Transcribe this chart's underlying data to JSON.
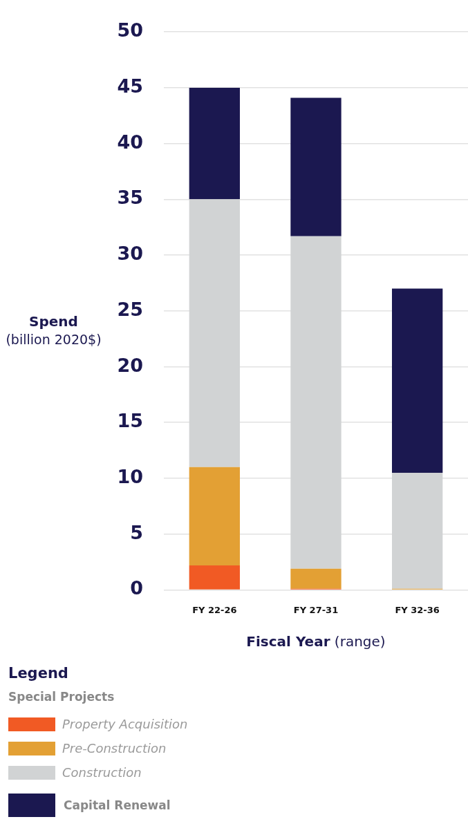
{
  "chart_data": {
    "type": "bar",
    "stacked": true,
    "categories": [
      "FY 22-26",
      "FY 27-31",
      "FY 32-36"
    ],
    "series": [
      {
        "name": "Property Acquisition",
        "color": "#f15a24",
        "values": [
          2.2,
          0.1,
          0
        ]
      },
      {
        "name": "Pre-Construction",
        "color": "#e3a034",
        "values": [
          8.8,
          1.8,
          0.1
        ]
      },
      {
        "name": "Construction",
        "color": "#d1d3d4",
        "values": [
          24,
          29.8,
          10.4
        ]
      },
      {
        "name": "Capital Renewal",
        "color": "#1b1850",
        "values": [
          10,
          12.4,
          16.5
        ]
      }
    ],
    "ylim": [
      0,
      50
    ],
    "yticks": [
      0,
      5,
      10,
      15,
      20,
      25,
      30,
      35,
      40,
      45,
      50
    ],
    "ylabel": "Spend\n(billion 2020$)",
    "xlabel": "Fiscal Year (range)",
    "legend_title": "Legend",
    "annotations": [
      "Special Projects"
    ],
    "grid": "y",
    "legend": "bottom"
  }
}
